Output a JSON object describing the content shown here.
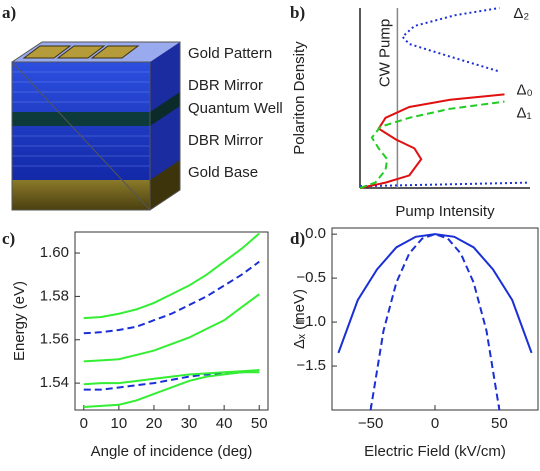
{
  "diagram": {
    "panel_label": "a)",
    "layers": [
      "Gold Pattern",
      "DBR Mirror",
      "Quantum Well",
      "DBR Mirror",
      "Gold Base"
    ]
  },
  "chart_data": [
    {
      "type": "line",
      "panel_label": "b)",
      "y_label": "Polariton Density",
      "x_label": "Pump Intensity",
      "annotations": [
        {
          "text": "CW Pump",
          "x": 0.22
        }
      ],
      "xlim": [
        0,
        1
      ],
      "ylim": [
        0,
        1
      ],
      "series": [
        {
          "name": "Δ₂",
          "color": "#1a2fd6",
          "dash": "dotted",
          "x": [
            0,
            0.5,
            1,
            null,
            0.81,
            0.53,
            0.29,
            0.25,
            0.32,
            0.56,
            0.82
          ],
          "values": [
            0.01,
            0.02,
            0.03,
            null,
            0.65,
            0.73,
            0.8,
            0.84,
            0.9,
            0.96,
            1.0
          ]
        },
        {
          "name": "Δ₀",
          "color": "#e01010",
          "dash": "solid",
          "x": [
            0,
            0.15,
            0.29,
            0.36,
            0.32,
            0.21,
            0.11,
            0.15,
            0.29,
            0.53,
            0.85
          ],
          "values": [
            0,
            0.03,
            0.07,
            0.16,
            0.22,
            0.27,
            0.33,
            0.39,
            0.45,
            0.49,
            0.52
          ]
        },
        {
          "name": "Δ₁",
          "color": "#22cc22",
          "dash": "dashed",
          "x": [
            0,
            0.09,
            0.15,
            0.16,
            0.11,
            0.07,
            0.12,
            0.29,
            0.53,
            0.85
          ],
          "values": [
            0,
            0.03,
            0.1,
            0.16,
            0.22,
            0.28,
            0.34,
            0.39,
            0.44,
            0.48
          ]
        }
      ]
    },
    {
      "type": "line",
      "panel_label": "c)",
      "y_label": "Energy (eV)",
      "x_label": "Angle of incidence (deg)",
      "x": [
        0,
        5,
        10,
        15,
        20,
        25,
        30,
        35,
        40,
        45,
        50
      ],
      "xlim": [
        -2.5,
        52.5
      ],
      "xticks": [
        0,
        10,
        20,
        30,
        40,
        50
      ],
      "ylim": [
        1.5276,
        1.6097
      ],
      "yticks": [
        1.54,
        1.56,
        1.58,
        {
          "value": 1.6,
          "label": "1.60"
        }
      ],
      "series": [
        {
          "color": "#33ee33",
          "dash": "solid",
          "values": [
            1.57,
            1.5705,
            1.572,
            1.574,
            1.577,
            1.581,
            1.585,
            1.59,
            1.596,
            1.602,
            1.609
          ]
        },
        {
          "color": "#1a2fd6",
          "dash": "dashed",
          "values": [
            1.563,
            1.5635,
            1.5645,
            1.566,
            1.569,
            1.572,
            1.576,
            1.58,
            1.585,
            1.59,
            1.596
          ]
        },
        {
          "color": "#33ee33",
          "dash": "solid",
          "values": [
            1.55,
            1.5505,
            1.551,
            1.553,
            1.555,
            1.558,
            1.561,
            1.565,
            1.569,
            1.575,
            1.581
          ]
        },
        {
          "color": "#1a2fd6",
          "dash": "dashed",
          "values": [
            1.537,
            1.537,
            1.538,
            1.539,
            1.54,
            1.5415,
            1.543,
            1.544,
            1.5445,
            1.545,
            1.546
          ]
        },
        {
          "color": "#33ee33",
          "dash": "solid",
          "values": [
            1.5395,
            1.54,
            1.54,
            1.541,
            1.542,
            1.543,
            1.544,
            1.5445,
            1.545,
            1.5455,
            1.546
          ]
        },
        {
          "color": "#33ee33",
          "dash": "solid",
          "values": [
            1.529,
            1.5295,
            1.53,
            1.532,
            1.535,
            1.538,
            1.541,
            1.543,
            1.544,
            1.545,
            1.545
          ]
        }
      ]
    },
    {
      "type": "line",
      "panel_label": "d)",
      "y_label": "Δₓ (meV)",
      "x_label": "Electric Field (kV/cm)",
      "xlim": [
        -80,
        80
      ],
      "xticks": [
        {
          "value": -50,
          "label": "−50"
        },
        0,
        50
      ],
      "ylim": [
        -2.0,
        0.07
      ],
      "yticks": [
        {
          "value": 0,
          "label": "0.0"
        },
        {
          "value": -0.5,
          "label": "−0.5"
        },
        {
          "value": -1,
          "label": "−1.0"
        },
        {
          "value": -1.5,
          "label": "−1.5"
        }
      ],
      "series": [
        {
          "color": "#1a2fd6",
          "dash": "solid",
          "x": [
            -75,
            -60,
            -45,
            -30,
            -15,
            0,
            15,
            30,
            45,
            60,
            75
          ],
          "values": [
            -1.35,
            -0.75,
            -0.4,
            -0.15,
            -0.03,
            0,
            -0.03,
            -0.15,
            -0.4,
            -0.75,
            -1.35
          ]
        },
        {
          "color": "#1a2fd6",
          "dash": "dashed",
          "x": [
            -50,
            -40,
            -30,
            -20,
            -10,
            0,
            10,
            20,
            30,
            40,
            50
          ],
          "values": [
            -2.0,
            -1.1,
            -0.55,
            -0.22,
            -0.05,
            0,
            -0.05,
            -0.22,
            -0.55,
            -1.1,
            -2.0
          ]
        }
      ]
    }
  ]
}
